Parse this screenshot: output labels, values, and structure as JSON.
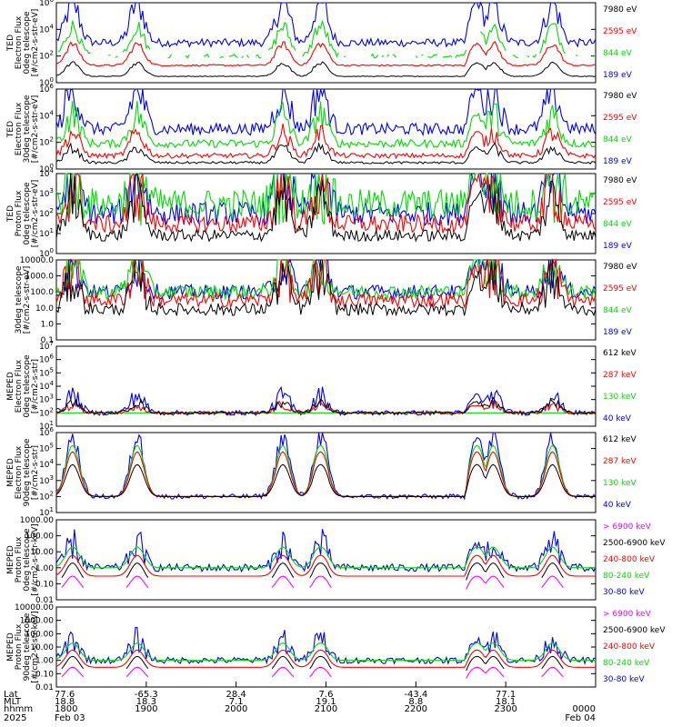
{
  "colors": {
    "blue": "#0000ff",
    "red": "#ff0000",
    "green": "#00dd00",
    "black": "#000000",
    "magenta": "#ff00ff"
  },
  "chart_data": [
    {
      "type": "line",
      "ylabel_lines": [
        "TED",
        "Electron Flux",
        "0deg telescope",
        "[#/cm2-s-str-eV]"
      ],
      "y_scale": "log",
      "ylim": [
        1,
        1000000
      ],
      "tick_labels": [
        "10^0",
        "10^2",
        "10^4",
        "10^6"
      ],
      "legend": [
        {
          "label": "7980 eV",
          "color": "black"
        },
        {
          "label": "2595 eV",
          "color": "red"
        },
        {
          "label": "844 eV",
          "color": "green"
        },
        {
          "label": "189 eV",
          "color": "blue"
        }
      ],
      "profile": {
        "blue": [
          1000,
          3.0
        ],
        "green": [
          100,
          2.2
        ],
        "red": [
          20,
          1.6
        ],
        "black": [
          3,
          1.0
        ]
      },
      "background": {
        "blue": 1.0,
        "green": 0.5,
        "red": 0.2,
        "black": 0.1
      },
      "gaps_green": true
    },
    {
      "type": "line",
      "ylabel_lines": [
        "TED",
        "Electron Flux",
        "30deg telescope",
        "[#/cm2-s-str-eV]"
      ],
      "y_scale": "log",
      "ylim": [
        1,
        1000000
      ],
      "tick_labels": [
        "10^0",
        "10^2",
        "10^4",
        "10^6"
      ],
      "legend": [
        {
          "label": "7980 eV",
          "color": "black"
        },
        {
          "label": "2595 eV",
          "color": "red"
        },
        {
          "label": "844 eV",
          "color": "green"
        },
        {
          "label": "189 eV",
          "color": "blue"
        }
      ],
      "profile": {
        "blue": [
          1000,
          3.0
        ],
        "green": [
          80,
          2.2
        ],
        "red": [
          10,
          1.7
        ],
        "black": [
          3,
          1.1
        ]
      },
      "background": {
        "blue": 1.5,
        "green": 1.0,
        "red": 0.6,
        "black": 0.3
      },
      "gaps_green": false
    },
    {
      "type": "line",
      "ylabel_lines": [
        "TED",
        "Proton Flux",
        "0deg telescope",
        "[#/cm2-s-str-eV]"
      ],
      "y_scale": "log",
      "ylim": [
        1,
        10000
      ],
      "tick_labels": [
        "10^0",
        "10^1",
        "10^2",
        "10^3",
        "10^4"
      ],
      "legend": [
        {
          "label": "7980 eV",
          "color": "black"
        },
        {
          "label": "2595 eV",
          "color": "red"
        },
        {
          "label": "844 eV",
          "color": "green"
        },
        {
          "label": "189 eV",
          "color": "blue"
        }
      ],
      "profile": {
        "blue": [
          100,
          2.4
        ],
        "green": [
          300,
          2.0
        ],
        "red": [
          30,
          2.0
        ],
        "black": [
          8,
          2.0
        ]
      },
      "background": {
        "blue": 2.0,
        "green": 2.5,
        "red": 1.5,
        "black": 1.0
      },
      "gaps_green": false
    },
    {
      "type": "line",
      "ylabel_lines": [
        "30deg telescope",
        "[#/cm2-s-str-eV]"
      ],
      "y_scale": "log",
      "ylim": [
        0.1,
        10000
      ],
      "tick_labels": [
        "0.1",
        "1.0",
        "10.0",
        "100.0",
        "1000.0",
        "10000.0"
      ],
      "legend": [
        {
          "label": "7980 eV",
          "color": "black"
        },
        {
          "label": "2595 eV",
          "color": "red"
        },
        {
          "label": "844 eV",
          "color": "green"
        },
        {
          "label": "189 eV",
          "color": "blue"
        }
      ],
      "profile": {
        "blue": [
          100,
          2.0
        ],
        "green": [
          100,
          2.0
        ],
        "red": [
          30,
          2.0
        ],
        "black": [
          8,
          2.0
        ]
      },
      "background": {
        "blue": 1.5,
        "green": 1.5,
        "red": 1.5,
        "black": 1.3
      },
      "gaps_green": false
    },
    {
      "type": "line",
      "ylabel_lines": [
        "MEPED",
        "Electron Flux",
        "0deg telescope",
        "[#/cm2-s-str]"
      ],
      "y_scale": "log",
      "ylim": [
        10,
        10000000
      ],
      "tick_labels": [
        "10^1",
        "10^2",
        "10^3",
        "10^4",
        "10^5",
        "10^6",
        "10^7"
      ],
      "legend": [
        {
          "label": "612 keV",
          "color": "black"
        },
        {
          "label": "287 keV",
          "color": "red"
        },
        {
          "label": "130 keV",
          "color": "green"
        },
        {
          "label": "40 keV",
          "color": "blue"
        }
      ],
      "profile": {
        "blue": [
          100,
          1.3
        ],
        "green": [
          100,
          0.0
        ],
        "red": [
          100,
          0.6
        ],
        "black": [
          100,
          0.8
        ]
      },
      "background": {
        "blue": 0.6,
        "green": 0.0,
        "red": 0.3,
        "black": 0.3
      },
      "gaps_green": false
    },
    {
      "type": "line",
      "ylabel_lines": [
        "MEPED",
        "Electron Flux",
        "90deg telescope",
        "[#/cm2-s-str]"
      ],
      "y_scale": "log",
      "ylim": [
        10,
        1000000
      ],
      "tick_labels": [
        "10^1",
        "10^2",
        "10^3",
        "10^4",
        "10^5",
        "10^6"
      ],
      "legend": [
        {
          "label": "612 keV",
          "color": "black"
        },
        {
          "label": "287 keV",
          "color": "red"
        },
        {
          "label": "130 keV",
          "color": "green"
        },
        {
          "label": "40 keV",
          "color": "blue"
        }
      ],
      "profile": {
        "blue": [
          100,
          3.7
        ],
        "green": [
          100,
          3.2
        ],
        "red": [
          100,
          2.8
        ],
        "black": [
          100,
          2.0
        ]
      },
      "background": {
        "blue": 0.5,
        "green": 0.0,
        "red": 0.0,
        "black": 0.0
      },
      "gaps_green": false
    },
    {
      "type": "line",
      "ylabel_lines": [
        "MEPED",
        "Proton Flux",
        "0deg telescope",
        "[#/cm2-s-str-keV]"
      ],
      "y_scale": "log",
      "ylim": [
        0.01,
        1000
      ],
      "tick_labels": [
        "0.01",
        "0.10",
        "1.00",
        "10.00",
        "100.00",
        "1000.00"
      ],
      "legend": [
        {
          "label": "> 6900 keV",
          "color": "magenta"
        },
        {
          "label": "2500-6900 keV",
          "color": "black"
        },
        {
          "label": "240-800 keV",
          "color": "red"
        },
        {
          "label": "80-240 keV",
          "color": "green"
        },
        {
          "label": "30-80 keV",
          "color": "blue"
        }
      ],
      "profile": {
        "blue": [
          1,
          1.5
        ],
        "green": [
          1,
          1.3
        ],
        "red": [
          0.3,
          1.3
        ],
        "black": [
          0.1,
          1.3
        ],
        "magenta": [
          0.03,
          1.0
        ]
      },
      "background": {
        "blue": 0.8,
        "green": 0.0,
        "red": 0.0,
        "black": 0.0,
        "magenta": 0.0
      },
      "gaps_green": false
    },
    {
      "type": "line",
      "ylabel_lines": [
        "MEPED",
        "Proton Flux",
        "90deg telescope",
        "[#/cm2-s-str-keV]"
      ],
      "y_scale": "log",
      "ylim": [
        0.01,
        10000
      ],
      "tick_labels": [
        "0.01",
        "0.10",
        "1.00",
        "10.00",
        "100.00",
        "1000.00",
        "10000.00"
      ],
      "legend": [
        {
          "label": "> 6900 keV",
          "color": "magenta"
        },
        {
          "label": "2500-6900 keV",
          "color": "black"
        },
        {
          "label": "240-800 keV",
          "color": "red"
        },
        {
          "label": "80-240 keV",
          "color": "green"
        },
        {
          "label": "30-80 keV",
          "color": "blue"
        }
      ],
      "profile": {
        "blue": [
          1,
          1.6
        ],
        "green": [
          1,
          1.3
        ],
        "red": [
          0.3,
          1.3
        ],
        "black": [
          0.1,
          1.3
        ],
        "magenta": [
          0.03,
          1.0
        ]
      },
      "background": {
        "blue": 0.8,
        "green": 0.0,
        "red": 0.0,
        "black": 0.0,
        "magenta": 0.0
      },
      "gaps_green": false
    }
  ],
  "time_axis": {
    "row_labels": [
      "Lat",
      "MLT",
      "hhmm",
      "2025"
    ],
    "ticks": [
      {
        "lat": "77.6",
        "mlt": "18.8",
        "hhmm": "1800",
        "date": "Feb 03"
      },
      {
        "lat": "-65.3",
        "mlt": "18.3",
        "hhmm": "1900",
        "date": ""
      },
      {
        "lat": "28.4",
        "mlt": "7.1",
        "hhmm": "2000",
        "date": ""
      },
      {
        "lat": "7.6",
        "mlt": "19.1",
        "hhmm": "2100",
        "date": ""
      },
      {
        "lat": "-43.4",
        "mlt": "8.8",
        "hhmm": "2200",
        "date": ""
      },
      {
        "lat": "77.1",
        "mlt": "18.1",
        "hhmm": "2300",
        "date": ""
      },
      {
        "lat": "",
        "mlt": "",
        "hhmm": "0000",
        "date": "Feb 04"
      }
    ]
  },
  "events": {
    "passes": [
      0.03,
      0.15,
      0.42,
      0.49,
      0.81,
      0.92
    ],
    "bell_centers": [
      0.49,
      0.78
    ]
  }
}
